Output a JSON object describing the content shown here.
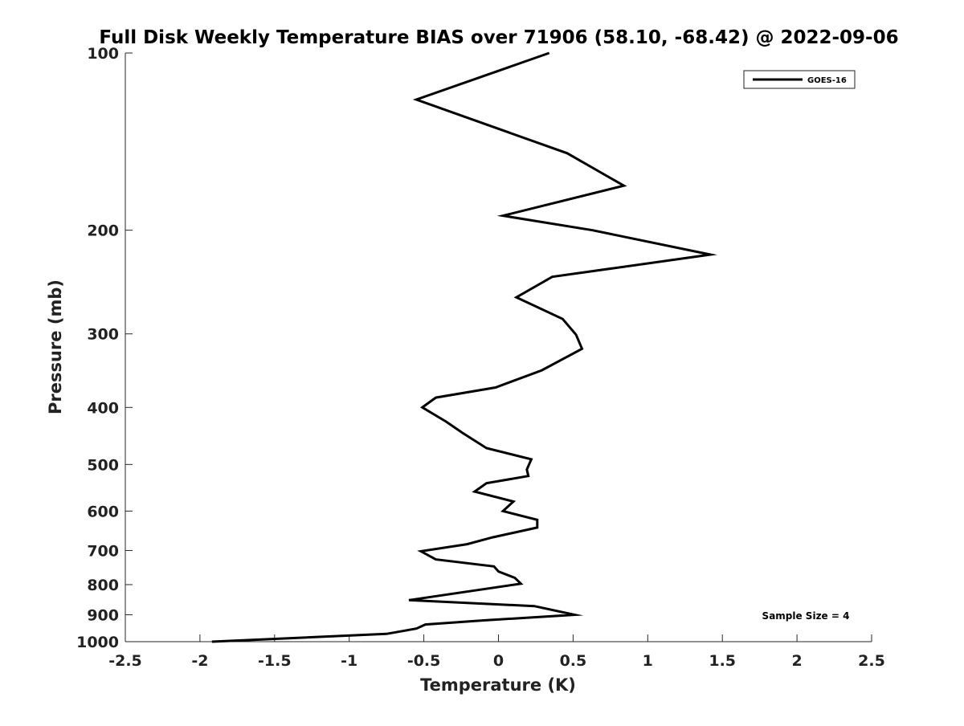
{
  "chart_data": {
    "type": "line",
    "title": "Full Disk Weekly Temperature BIAS over 71906 (58.10, -68.42) @ 2022-09-06",
    "xlabel": "Temperature (K)",
    "ylabel": "Pressure (mb)",
    "xlim": [
      -2.5,
      2.5
    ],
    "ylim": [
      100,
      1000
    ],
    "y_scale": "log",
    "y_reversed": true,
    "grid": false,
    "legend_position": "top-right",
    "x_ticks": [
      "-2.5",
      "-2",
      "-1.5",
      "-1",
      "-0.5",
      "0",
      "0.5",
      "1",
      "1.5",
      "2",
      "2.5"
    ],
    "y_ticks": [
      "100",
      "200",
      "300",
      "400",
      "500",
      "600",
      "700",
      "800",
      "900",
      "1000"
    ],
    "annotation": "Sample Size = 4",
    "series": [
      {
        "name": "GOES-16",
        "color": "#000000",
        "points": [
          [
            0.34,
            100
          ],
          [
            -0.55,
            120
          ],
          [
            0.46,
            148
          ],
          [
            0.84,
            168
          ],
          [
            0.03,
            189
          ],
          [
            0.63,
            200
          ],
          [
            1.42,
            220
          ],
          [
            0.36,
            240
          ],
          [
            0.12,
            260
          ],
          [
            0.43,
            283
          ],
          [
            0.52,
            301
          ],
          [
            0.56,
            318
          ],
          [
            0.29,
            346
          ],
          [
            -0.02,
            370
          ],
          [
            -0.42,
            385
          ],
          [
            -0.51,
            400
          ],
          [
            -0.35,
            423
          ],
          [
            -0.24,
            442
          ],
          [
            -0.08,
            469
          ],
          [
            0.22,
            490
          ],
          [
            0.19,
            510
          ],
          [
            0.2,
            523
          ],
          [
            -0.08,
            538
          ],
          [
            -0.16,
            556
          ],
          [
            0.1,
            578
          ],
          [
            0.03,
            600
          ],
          [
            0.26,
            621
          ],
          [
            0.26,
            640
          ],
          [
            -0.04,
            665
          ],
          [
            -0.21,
            683
          ],
          [
            -0.52,
            702
          ],
          [
            -0.42,
            725
          ],
          [
            -0.03,
            745
          ],
          [
            0.0,
            760
          ],
          [
            0.11,
            779
          ],
          [
            0.15,
            797
          ],
          [
            -0.6,
            850
          ],
          [
            0.24,
            870
          ],
          [
            0.51,
            900
          ],
          [
            -0.1,
            920
          ],
          [
            -0.49,
            935
          ],
          [
            -0.55,
            950
          ],
          [
            -0.75,
            970
          ],
          [
            -1.92,
            1000
          ]
        ]
      }
    ]
  }
}
